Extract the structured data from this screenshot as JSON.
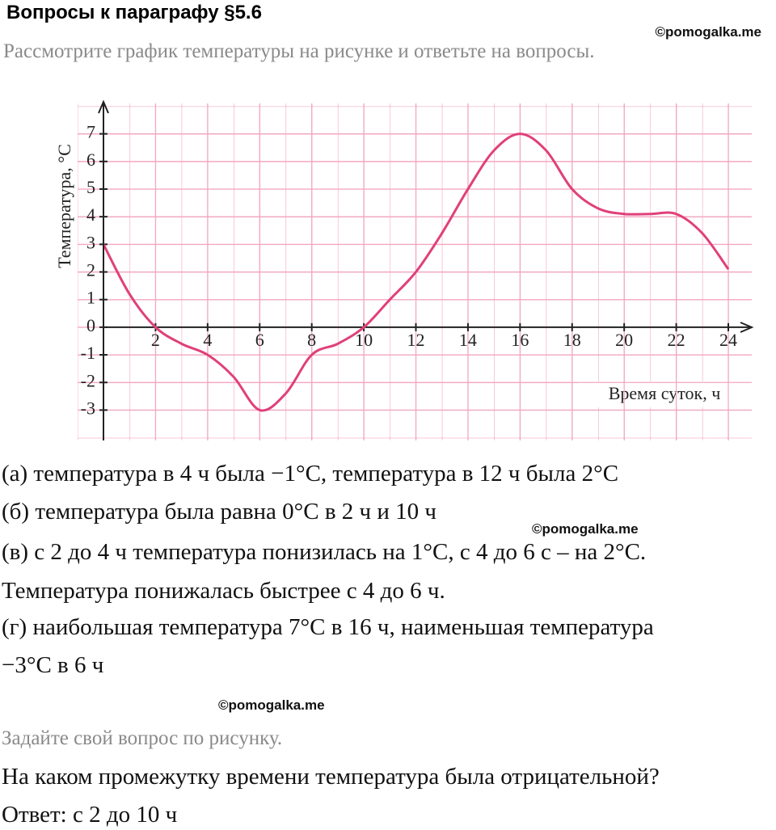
{
  "header": {
    "title": "Вопросы к параграфу §5.6",
    "watermark": "©pomogalka.me"
  },
  "intro": "Рассмотрите график температуры на рисунке и ответьте на вопросы.",
  "chart_data": {
    "type": "line",
    "ylabel": "Температура, °С",
    "xlabel": "Время суток, ч",
    "x": [
      0,
      1,
      2,
      3,
      4,
      5,
      6,
      7,
      8,
      9,
      10,
      11,
      12,
      13,
      14,
      15,
      16,
      17,
      18,
      19,
      20,
      21,
      22,
      23,
      24
    ],
    "values": [
      3,
      1.2,
      0,
      -0.6,
      -1,
      -1.8,
      -3,
      -2.4,
      -1,
      -0.6,
      0,
      1,
      2,
      3.4,
      5,
      6.4,
      7,
      6.4,
      5,
      4.3,
      4.1,
      4.1,
      4.1,
      3.4,
      2.1
    ],
    "color": "#e0407a",
    "xlim": [
      0,
      24.9
    ],
    "ylim": [
      -4.1,
      8.1
    ],
    "xticks": [
      2,
      4,
      6,
      8,
      10,
      12,
      14,
      16,
      18,
      20,
      22,
      24
    ],
    "yticks": [
      -3,
      -2,
      -1,
      0,
      1,
      2,
      3,
      4,
      5,
      6,
      7
    ],
    "grid": true
  },
  "answers": [
    "(а) температура в 4 ч была −1°С, температура в 12 ч была 2°С",
    "(б) температура была равна 0°С в 2 ч и 10 ч",
    "(в) с 2 до 4 ч температура понизилась на 1°С, с 4 до 6 с – на 2°С.",
    "Температура понижалась быстрее с 4 до 6 ч.",
    "(г) наибольшая температура 7°С в 16 ч, наименьшая температура",
    "−3°С в 6 ч"
  ],
  "watermarks": [
    "©pomogalka.me",
    "©pomogalka.me"
  ],
  "own_question": {
    "prompt": "Задайте свой вопрос по рисунку.",
    "question": "На каком промежутку времени температура была отрицательной?",
    "answer": "Ответ: с 2 до 10 ч"
  }
}
